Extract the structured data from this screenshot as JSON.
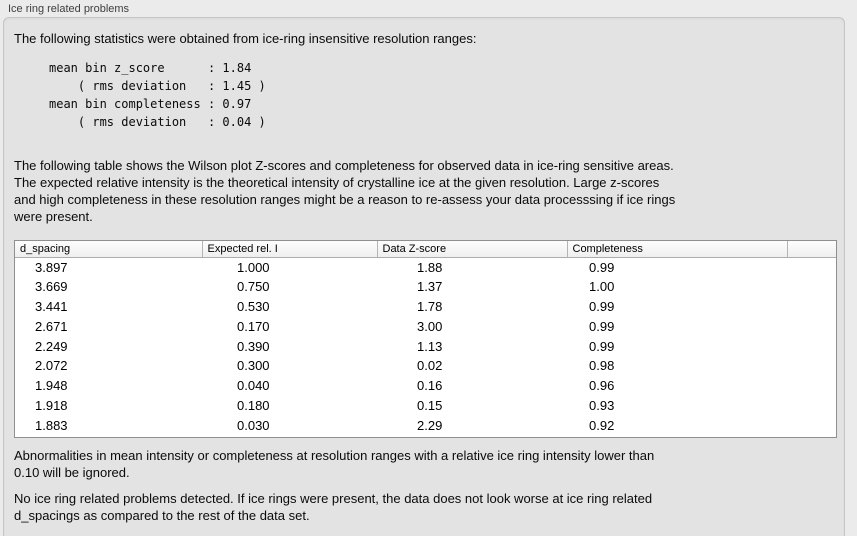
{
  "header": {
    "title": "Ice ring related problems"
  },
  "intro": {
    "text": "The following statistics were obtained from ice-ring insensitive resolution ranges:"
  },
  "stats_block": "mean bin z_score      : 1.84\n    ( rms deviation   : 1.45 )\nmean bin completeness : 0.97\n    ( rms deviation   : 0.04 )",
  "stats": {
    "mean_bin_z_score": "1.84",
    "z_score_rms_deviation": "1.45",
    "mean_bin_completeness": "0.97",
    "completeness_rms_deviation": "0.04"
  },
  "table_note": {
    "text": "The following table shows the Wilson plot Z-scores and completeness for observed data in ice-ring sensitive areas.\nThe expected relative intensity is the theoretical intensity of crystalline ice at the given resolution. Large z-scores\nand high completeness in these resolution ranges might be a reason to re-assess your data processsing if ice rings\nwere present."
  },
  "table": {
    "columns": [
      "d_spacing",
      "Expected rel. I",
      "Data Z-score",
      "Completeness",
      ""
    ],
    "rows": [
      [
        "3.897",
        "1.000",
        "1.88",
        "0.99"
      ],
      [
        "3.669",
        "0.750",
        "1.37",
        "1.00"
      ],
      [
        "3.441",
        "0.530",
        "1.78",
        "0.99"
      ],
      [
        "2.671",
        "0.170",
        "3.00",
        "0.99"
      ],
      [
        "2.249",
        "0.390",
        "1.13",
        "0.99"
      ],
      [
        "2.072",
        "0.300",
        "0.02",
        "0.98"
      ],
      [
        "1.948",
        "0.040",
        "0.16",
        "0.96"
      ],
      [
        "1.918",
        "0.180",
        "0.15",
        "0.93"
      ],
      [
        "1.883",
        "0.030",
        "2.29",
        "0.92"
      ]
    ]
  },
  "footer_notes": {
    "ignore_note": "Abnormalities in mean intensity or completeness at resolution ranges with a relative ice ring intensity lower than\n0.10 will be ignored.",
    "conclusion": "No ice ring related problems detected. If ice rings were present, the data does not look worse at ice ring related\nd_spacings as compared to the rest of the data set."
  },
  "colors": {
    "page_background": "#ebebeb",
    "groupbox_background": "#e3e3e3",
    "groupbox_border": "#c6c6c6",
    "table_background": "#ffffff",
    "table_border": "#8f8f8f",
    "table_header_gradient_top": "#fdfdfd",
    "table_header_gradient_bottom": "#efefef",
    "text": "#0a0a0a"
  }
}
